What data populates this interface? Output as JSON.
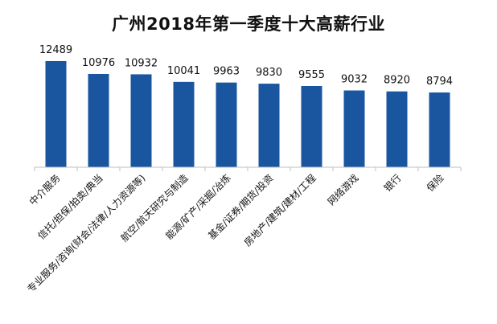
{
  "chart_data": {
    "type": "bar",
    "title": "广州2018年第一季度十大高薪行业",
    "xlabel": "",
    "ylabel": "",
    "categories": [
      "中介服务",
      "信托/担保/拍卖/典当",
      "专业服务/咨询(财会/法律/人力资源等)",
      "航空/航天研究与制造",
      "能源/矿产/采掘/冶炼",
      "基金/证券/期货/投资",
      "房地产/建筑/建材/工程",
      "网络游戏",
      "银行",
      "保险"
    ],
    "values": [
      12489,
      10976,
      10932,
      10041,
      9963,
      9830,
      9555,
      9032,
      8920,
      8794
    ],
    "ylim": [
      0,
      14000
    ],
    "grid": false,
    "legend": "none",
    "bar_color": "#1a56a0",
    "axis_color": "#bfbfbf"
  }
}
